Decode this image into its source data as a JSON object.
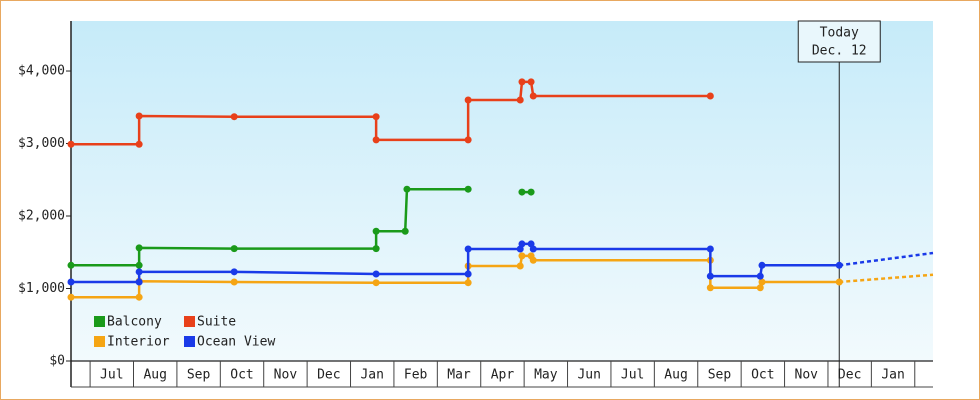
{
  "chart_data": {
    "type": "line",
    "step": true,
    "categories": [
      "Jul",
      "Aug",
      "Sep",
      "Oct",
      "Nov",
      "Dec",
      "Jan",
      "Feb",
      "Mar",
      "Apr",
      "May",
      "Jun",
      "Jul",
      "Aug",
      "Sep",
      "Oct",
      "Nov",
      "Dec",
      "Jan"
    ],
    "xlim": [
      -0.44,
      19.42
    ],
    "ylim": [
      0,
      4690
    ],
    "yticks": [
      {
        "value": 0,
        "label": "$0"
      },
      {
        "value": 1000,
        "label": "$1,000"
      },
      {
        "value": 2000,
        "label": "$2,000"
      },
      {
        "value": 3000,
        "label": "$3,000"
      },
      {
        "value": 4000,
        "label": "$4,000"
      }
    ],
    "series": [
      {
        "name": "Balcony",
        "color": "#1a9a1a",
        "x": [
          -0.44,
          1.13,
          1.13,
          3.32,
          6.59,
          6.59,
          7.26,
          7.3,
          8.71,
          null,
          9.95,
          10.16
        ],
        "values": [
          1320,
          1320,
          1560,
          1550,
          1550,
          1790,
          1790,
          2370,
          2370,
          null,
          2330,
          2330
        ]
      },
      {
        "name": "Suite",
        "color": "#e8401a",
        "x": [
          -0.44,
          1.13,
          1.13,
          3.32,
          6.59,
          6.59,
          8.71,
          8.71,
          9.91,
          9.95,
          10.16,
          10.21,
          14.29
        ],
        "values": [
          2990,
          2990,
          3380,
          3370,
          3370,
          3050,
          3050,
          3600,
          3600,
          3850,
          3850,
          3655,
          3655
        ]
      },
      {
        "name": "Interior",
        "color": "#f5a514",
        "x": [
          -0.44,
          1.13,
          1.13,
          3.32,
          6.59,
          8.71,
          8.71,
          9.91,
          9.95,
          10.16,
          10.21,
          14.29,
          14.29,
          15.44,
          15.48,
          17.26
        ],
        "values": [
          880,
          880,
          1100,
          1090,
          1080,
          1080,
          1310,
          1310,
          1450,
          1450,
          1390,
          1390,
          1010,
          1010,
          1090,
          1090
        ],
        "projection_x": [
          17.26,
          19.42
        ],
        "projection": [
          1090,
          1190
        ]
      },
      {
        "name": "Ocean View",
        "color": "#1a3ae8",
        "x": [
          -0.44,
          1.13,
          1.13,
          3.32,
          6.59,
          8.71,
          8.71,
          9.91,
          9.95,
          10.16,
          10.21,
          14.29,
          14.29,
          15.44,
          15.48,
          17.26
        ],
        "values": [
          1090,
          1090,
          1230,
          1230,
          1200,
          1200,
          1545,
          1545,
          1615,
          1615,
          1545,
          1545,
          1170,
          1170,
          1320,
          1320
        ],
        "projection_x": [
          17.26,
          19.42
        ],
        "projection": [
          1320,
          1490
        ]
      }
    ],
    "annotation": {
      "lines": [
        "Today",
        "Dec. 12"
      ],
      "x": 17.26
    }
  }
}
